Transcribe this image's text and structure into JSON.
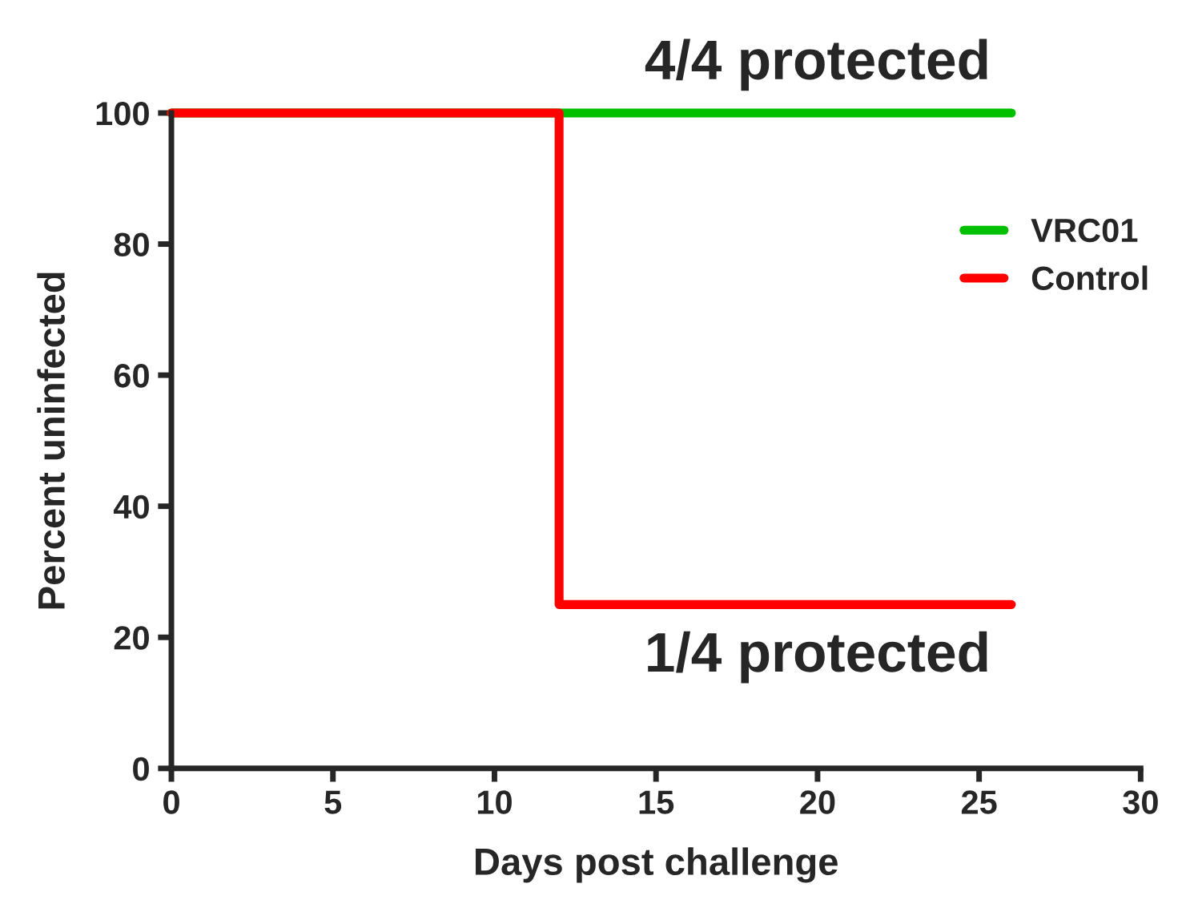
{
  "chart_data": {
    "type": "step",
    "xlabel": "Days post challenge",
    "ylabel": "Percent uninfected",
    "series": [
      {
        "name": "VRC01",
        "color": "#00c000",
        "x": [
          0,
          26
        ],
        "values": [
          100,
          100
        ]
      },
      {
        "name": "Control",
        "color": "#ff0000",
        "x": [
          0,
          12,
          26
        ],
        "values": [
          100,
          25,
          25
        ]
      }
    ],
    "xlim": [
      0,
      30
    ],
    "xticks": [
      0,
      5,
      10,
      15,
      20,
      25,
      30
    ],
    "ylim": [
      0,
      100
    ],
    "yticks": [
      0,
      20,
      40,
      60,
      80,
      100
    ],
    "annotations": [
      {
        "text": "4/4 protected",
        "x": 20,
        "y": 100
      },
      {
        "text": "1/4 protected",
        "x": 20,
        "y": 25
      }
    ],
    "legend": "right",
    "grid": false
  }
}
